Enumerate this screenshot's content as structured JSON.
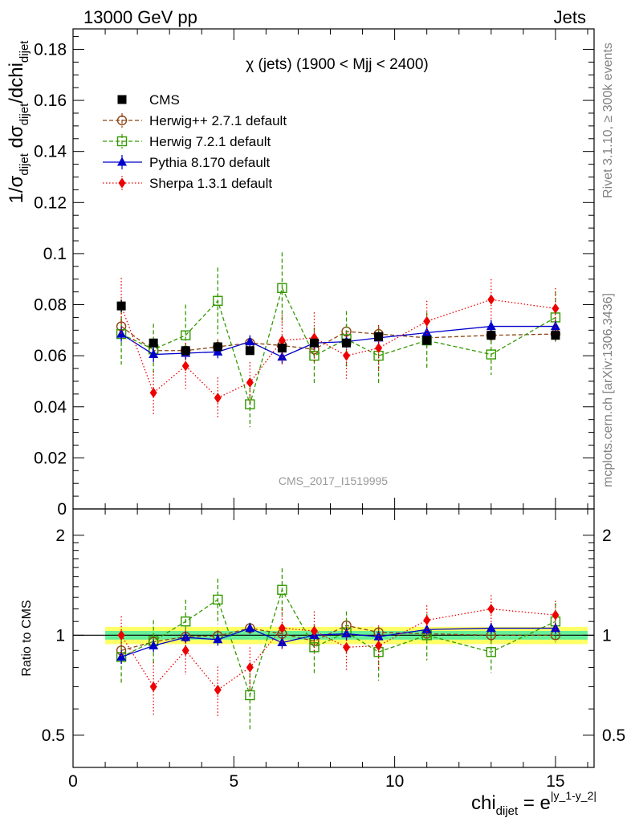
{
  "header": {
    "left": "13000 GeV pp",
    "right": "Jets"
  },
  "side_text": {
    "top": "Rivet 3.1.10, ≥ 300k events",
    "bottom": "mcplots.cern.ch [arXiv:1306.3436]"
  },
  "watermark": "CMS_2017_I1519995",
  "chart_data": [
    {
      "panel": "main",
      "type": "scatter",
      "title": "χ (jets) (1900 < Mjj < 2400)",
      "ylabel": "1/σ_dijet dσ_dijet/dchi_dijet",
      "xlabel": "chi_dijet = e^|y_1-y_2|",
      "xlim": [
        0,
        16.2
      ],
      "ylim": [
        0,
        0.188
      ],
      "x_ticks": [
        "0",
        "5",
        "10",
        "15"
      ],
      "y_ticks": [
        "0",
        "0.02",
        "0.04",
        "0.06",
        "0.08",
        "0.1",
        "0.12",
        "0.14",
        "0.16",
        "0.18"
      ],
      "legend_position": "top-left",
      "x": [
        1.5,
        2.5,
        3.5,
        4.5,
        5.5,
        6.5,
        7.5,
        8.5,
        9.5,
        11,
        13,
        15
      ],
      "series": [
        {
          "name": "CMS",
          "color": "#000000",
          "marker": "square-filled",
          "line": "none",
          "values": [
            0.0795,
            0.065,
            0.062,
            0.0635,
            0.062,
            0.063,
            0.065,
            0.065,
            0.0675,
            0.066,
            0.068,
            0.068
          ],
          "errors": [
            0.0025,
            0.0015,
            0.0012,
            0.0012,
            0.0012,
            0.0012,
            0.0012,
            0.0012,
            0.0012,
            0.0012,
            0.0012,
            0.0012
          ]
        },
        {
          "name": "Herwig++ 2.7.1 default",
          "color": "#8B4513",
          "marker": "circle-open",
          "line": "dashed",
          "values": [
            0.0715,
            0.062,
            0.062,
            0.0635,
            0.065,
            0.064,
            0.0625,
            0.0695,
            0.0685,
            0.067,
            0.068,
            0.0685
          ],
          "errors": [
            0.003,
            0.003,
            0.003,
            0.003,
            0.003,
            0.003,
            0.003,
            0.003,
            0.003,
            0.003,
            0.003,
            0.003
          ]
        },
        {
          "name": "Herwig 7.2.1 default",
          "color": "#339900",
          "marker": "square-open",
          "line": "dashed",
          "values": [
            0.0685,
            0.0625,
            0.068,
            0.0815,
            0.041,
            0.0865,
            0.06,
            0.0665,
            0.06,
            0.066,
            0.0605,
            0.075
          ],
          "errors": [
            0.012,
            0.01,
            0.012,
            0.013,
            0.009,
            0.014,
            0.011,
            0.011,
            0.011,
            0.011,
            0.008,
            0.01
          ]
        },
        {
          "name": "Pythia 8.170 default",
          "color": "#0000CC",
          "marker": "triangle-filled",
          "line": "solid",
          "values": [
            0.0685,
            0.0605,
            0.061,
            0.0615,
            0.0655,
            0.0595,
            0.065,
            0.0655,
            0.067,
            0.069,
            0.0715,
            0.0715
          ],
          "errors": [
            0.003,
            0.003,
            0.0025,
            0.0025,
            0.0025,
            0.0025,
            0.0025,
            0.0025,
            0.0025,
            0.0025,
            0.0025,
            0.0025
          ]
        },
        {
          "name": "Sherpa 1.3.1 default",
          "color": "#EE0000",
          "marker": "diamond-filled",
          "line": "dotted",
          "values": [
            0.0795,
            0.0455,
            0.056,
            0.0435,
            0.0495,
            0.066,
            0.067,
            0.06,
            0.063,
            0.0735,
            0.082,
            0.0785
          ],
          "errors": [
            0.011,
            0.0085,
            0.009,
            0.008,
            0.008,
            0.01,
            0.01,
            0.009,
            0.009,
            0.008,
            0.008,
            0.008
          ]
        }
      ]
    },
    {
      "panel": "ratio",
      "type": "scatter",
      "ylabel": "Ratio to CMS",
      "xlabel": "chi_dijet = e^|y_1-y_2|",
      "ylim": [
        0.4,
        2.4
      ],
      "y_scale": "log",
      "y_ticks": [
        "0.5",
        "1",
        "2"
      ],
      "reference_line": 1,
      "x": [
        1.5,
        2.5,
        3.5,
        4.5,
        5.5,
        6.5,
        7.5,
        8.5,
        9.5,
        11,
        13,
        15
      ],
      "band": {
        "x_range": [
          1,
          16
        ],
        "inner": [
          0.97,
          1.03
        ],
        "outer": [
          0.94,
          1.06
        ],
        "inner_color": "#66ee99",
        "outer_color": "#ffff66"
      },
      "series": [
        {
          "name": "Herwig++ 2.7.1 default",
          "values": [
            0.9,
            0.955,
            0.99,
            0.995,
            1.05,
            1.01,
            0.96,
            1.07,
            1.02,
            1.01,
            1.0,
            1.0
          ],
          "errors": [
            0.04,
            0.04,
            0.04,
            0.04,
            0.04,
            0.04,
            0.04,
            0.04,
            0.04,
            0.04,
            0.04,
            0.04
          ]
        },
        {
          "name": "Herwig 7.2.1 default",
          "values": [
            0.86,
            0.96,
            1.1,
            1.28,
            0.66,
            1.37,
            0.92,
            1.02,
            0.89,
            1.0,
            0.89,
            1.1
          ],
          "errors": [
            0.15,
            0.15,
            0.18,
            0.2,
            0.14,
            0.22,
            0.16,
            0.16,
            0.16,
            0.16,
            0.12,
            0.15
          ]
        },
        {
          "name": "Pythia 8.170 default",
          "values": [
            0.86,
            0.93,
            0.985,
            0.97,
            1.05,
            0.95,
            1.0,
            1.01,
            0.99,
            1.04,
            1.05,
            1.05
          ],
          "errors": [
            0.04,
            0.04,
            0.04,
            0.04,
            0.04,
            0.04,
            0.04,
            0.04,
            0.04,
            0.04,
            0.04,
            0.04
          ]
        },
        {
          "name": "Sherpa 1.3.1 default",
          "values": [
            1.0,
            0.7,
            0.9,
            0.685,
            0.8,
            1.05,
            1.03,
            0.92,
            0.93,
            1.11,
            1.2,
            1.15
          ],
          "errors": [
            0.14,
            0.13,
            0.14,
            0.12,
            0.12,
            0.15,
            0.15,
            0.14,
            0.14,
            0.12,
            0.12,
            0.12
          ]
        }
      ]
    }
  ]
}
